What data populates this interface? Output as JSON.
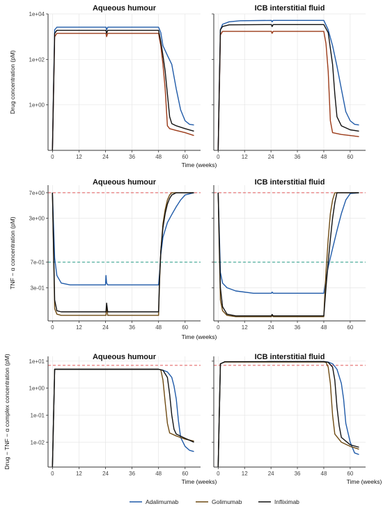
{
  "chart_data": [
    {
      "type": "line",
      "title": "Aqueous humour",
      "xlabel": "Time (weeks)",
      "ylabel": "Drug concentration (pM)",
      "yscale": "log",
      "xlim": [
        -2,
        67
      ],
      "ylim": [
        0.01,
        10000
      ],
      "xticks": [
        0,
        12,
        24,
        36,
        48,
        60
      ],
      "xtick_labels": [
        "0",
        "12",
        "24",
        "36",
        "48",
        "60"
      ],
      "yticks": [
        1,
        100,
        10000
      ],
      "ytick_labels": [
        "1e+00",
        "1e+02",
        "1e+04"
      ],
      "grid": true,
      "reference_lines": [],
      "series": [
        {
          "name": "Adalimumab",
          "x": [
            0,
            1,
            2,
            24.2,
            24.5,
            25,
            48,
            49,
            50,
            52,
            54,
            56,
            58,
            60,
            62,
            64
          ],
          "y": [
            0.01,
            2000,
            2600,
            2600,
            2000,
            2600,
            2600,
            1500,
            400,
            150,
            60,
            5,
            0.6,
            0.2,
            0.14,
            0.13
          ]
        },
        {
          "name": "Golimumab",
          "x": [
            0,
            1,
            2,
            24.2,
            24.5,
            25,
            48,
            49,
            50,
            51,
            52,
            53,
            56,
            60,
            64
          ],
          "y": [
            0.01,
            1000,
            1400,
            1400,
            1000,
            1400,
            1400,
            400,
            60,
            5,
            0.12,
            0.09,
            0.075,
            0.06,
            0.045
          ]
        },
        {
          "name": "Infliximab",
          "x": [
            0,
            1,
            2,
            24.2,
            24.5,
            25,
            48,
            49,
            50,
            51,
            52,
            53,
            54,
            56,
            60,
            64
          ],
          "y": [
            0.01,
            1400,
            1900,
            1900,
            1400,
            1900,
            1900,
            600,
            150,
            30,
            3,
            0.3,
            0.15,
            0.12,
            0.09,
            0.07
          ]
        }
      ]
    },
    {
      "type": "line",
      "title": "ICB interstitial fluid",
      "xlabel": "",
      "ylabel": "",
      "yscale": "log",
      "xlim": [
        -2,
        67
      ],
      "ylim": [
        0.01,
        10000
      ],
      "xticks": [
        0,
        12,
        24,
        36,
        48,
        60
      ],
      "xtick_labels": [
        "0",
        "12",
        "24",
        "36",
        "48",
        "60"
      ],
      "yticks": [
        1,
        100,
        10000
      ],
      "ytick_labels": [
        "",
        "",
        ""
      ],
      "grid": true,
      "reference_lines": [],
      "series": [
        {
          "name": "Adalimumab",
          "x": [
            0,
            1,
            2,
            5,
            10,
            24.2,
            24.5,
            25,
            48,
            50,
            52,
            54,
            56,
            58,
            60,
            62,
            64
          ],
          "y": [
            0.01,
            2000,
            3500,
            4500,
            5000,
            5200,
            4500,
            5200,
            5200,
            2000,
            400,
            50,
            5,
            0.5,
            0.2,
            0.14,
            0.13
          ]
        },
        {
          "name": "Golimumab",
          "x": [
            0,
            1,
            2,
            24.2,
            24.5,
            25,
            48,
            49,
            50,
            51,
            52,
            56,
            60,
            64
          ],
          "y": [
            0.01,
            1200,
            1700,
            1700,
            1400,
            1700,
            1700,
            500,
            30,
            0.2,
            0.06,
            0.05,
            0.045,
            0.04
          ]
        },
        {
          "name": "Infliximab",
          "x": [
            0,
            1,
            2,
            5,
            24.2,
            24.5,
            25,
            48,
            50,
            52,
            53,
            54,
            56,
            60,
            64
          ],
          "y": [
            0.01,
            2000,
            2800,
            3300,
            3400,
            2800,
            3400,
            3400,
            1500,
            60,
            3,
            0.3,
            0.12,
            0.08,
            0.07
          ]
        }
      ]
    },
    {
      "type": "line",
      "title": "Aqueous humour",
      "xlabel": "Time (weeks)",
      "ylabel": "TNF − α concentration (pM)",
      "yscale": "log",
      "xlim": [
        -2,
        67
      ],
      "ylim": [
        0.1,
        9
      ],
      "xticks": [
        0,
        12,
        24,
        36,
        48,
        60
      ],
      "xtick_labels": [
        "0",
        "12",
        "24",
        "36",
        "48",
        "60"
      ],
      "yticks": [
        0.3,
        0.7,
        3,
        7
      ],
      "ytick_labels": [
        "3e-01",
        "7e-01",
        "3e+00",
        "7e+00"
      ],
      "grid": true,
      "reference_lines": [
        {
          "y": 7,
          "color": "#e15759",
          "style": "dashed"
        },
        {
          "y": 0.7,
          "color": "#2e9f8a",
          "style": "dashed"
        }
      ],
      "series": [
        {
          "name": "Adalimumab",
          "x": [
            0,
            1,
            2,
            4,
            8,
            24,
            24.2,
            24.5,
            25,
            48,
            48.5,
            49,
            50,
            52,
            54,
            56,
            58,
            60,
            64
          ],
          "y": [
            7,
            0.8,
            0.45,
            0.35,
            0.33,
            0.33,
            0.45,
            0.35,
            0.33,
            0.33,
            0.5,
            0.9,
            1.6,
            2.6,
            3.4,
            4.4,
            5.5,
            6.5,
            7
          ]
        },
        {
          "name": "Golimumab",
          "x": [
            0,
            1,
            2,
            4,
            24.2,
            24.5,
            25,
            48,
            48.5,
            49,
            50,
            51,
            52,
            53,
            54,
            64
          ],
          "y": [
            7,
            0.15,
            0.125,
            0.12,
            0.12,
            0.16,
            0.12,
            0.12,
            0.4,
            1,
            2.5,
            4,
            5.5,
            6.5,
            7,
            7
          ]
        },
        {
          "name": "Infliximab",
          "x": [
            0,
            1,
            2,
            4,
            24.2,
            24.5,
            25,
            48,
            48.5,
            49,
            50,
            51,
            52,
            53,
            54,
            56,
            64
          ],
          "y": [
            7,
            0.2,
            0.14,
            0.135,
            0.135,
            0.18,
            0.135,
            0.135,
            0.45,
            1,
            2.2,
            3.5,
            4.8,
            5.8,
            6.5,
            7,
            7
          ]
        }
      ]
    },
    {
      "type": "line",
      "title": "ICB interstitial fluid",
      "xlabel": "",
      "ylabel": "",
      "yscale": "log",
      "xlim": [
        -2,
        67
      ],
      "ylim": [
        0.1,
        9
      ],
      "xticks": [
        0,
        12,
        24,
        36,
        48,
        60
      ],
      "xtick_labels": [
        "0",
        "12",
        "24",
        "36",
        "48",
        "60"
      ],
      "yticks": [
        0.3,
        0.7,
        3,
        7
      ],
      "ytick_labels": [
        "",
        "",
        "",
        ""
      ],
      "grid": true,
      "reference_lines": [
        {
          "y": 7,
          "color": "#e15759",
          "style": "dashed"
        },
        {
          "y": 0.7,
          "color": "#2e9f8a",
          "style": "dashed"
        }
      ],
      "series": [
        {
          "name": "Adalimumab",
          "x": [
            0,
            1,
            2,
            4,
            8,
            16,
            24.2,
            24.5,
            25,
            48,
            49,
            50,
            52,
            54,
            56,
            58,
            60,
            64
          ],
          "y": [
            7,
            0.5,
            0.35,
            0.3,
            0.27,
            0.25,
            0.25,
            0.26,
            0.25,
            0.25,
            0.4,
            0.6,
            1.1,
            2,
            3.5,
            5.5,
            6.8,
            7
          ]
        },
        {
          "name": "Golimumab",
          "x": [
            0,
            1,
            2,
            4,
            8,
            24.2,
            24.5,
            25,
            48,
            49,
            50,
            51,
            52,
            53,
            64
          ],
          "y": [
            7,
            0.2,
            0.14,
            0.12,
            0.115,
            0.115,
            0.12,
            0.115,
            0.115,
            0.5,
            1.5,
            3.5,
            5.5,
            7,
            7
          ]
        },
        {
          "name": "Infliximab",
          "x": [
            0,
            1,
            2,
            4,
            8,
            24.2,
            24.5,
            25,
            48,
            49,
            50,
            51,
            52,
            53,
            54,
            64
          ],
          "y": [
            7,
            0.3,
            0.16,
            0.125,
            0.118,
            0.118,
            0.124,
            0.118,
            0.118,
            0.3,
            0.7,
            1.5,
            3,
            5,
            7,
            7
          ]
        }
      ]
    },
    {
      "type": "line",
      "title": "Aqueous humour",
      "xlabel": "Time (weeks)",
      "ylabel": "Drug − TNF − α complex concentration (pM)",
      "yscale": "log",
      "xlim": [
        -2,
        67
      ],
      "ylim": [
        0.0012,
        15
      ],
      "xticks": [
        0,
        12,
        24,
        36,
        48,
        60
      ],
      "xtick_labels": [
        "0",
        "12",
        "24",
        "36",
        "48",
        "60"
      ],
      "yticks": [
        0.01,
        0.1,
        1,
        10
      ],
      "ytick_labels": [
        "1e-02",
        "1e-01",
        "1e+00",
        "1e+01"
      ],
      "grid": true,
      "reference_lines": [
        {
          "y": 7,
          "color": "#e15759",
          "style": "dashed"
        }
      ],
      "series": [
        {
          "name": "Adalimumab",
          "x": [
            0,
            1,
            24,
            48,
            50,
            52,
            54,
            55,
            56,
            57,
            58,
            60,
            62,
            64
          ],
          "y": [
            0.0012,
            5,
            5,
            5,
            4.6,
            4,
            2.5,
            1.2,
            0.4,
            0.06,
            0.015,
            0.007,
            0.005,
            0.0045
          ]
        },
        {
          "name": "Golimumab",
          "x": [
            0,
            1,
            24,
            48,
            49,
            50,
            51,
            52,
            53,
            56,
            60,
            64
          ],
          "y": [
            0.0012,
            5,
            5,
            5,
            4.8,
            2,
            0.3,
            0.05,
            0.022,
            0.017,
            0.013,
            0.011
          ]
        },
        {
          "name": "Infliximab",
          "x": [
            0,
            1,
            24,
            48,
            50,
            52,
            53,
            54,
            55,
            56,
            60,
            64
          ],
          "y": [
            0.0012,
            5,
            5,
            5,
            4.6,
            2.5,
            0.6,
            0.1,
            0.03,
            0.02,
            0.014,
            0.01
          ]
        }
      ]
    },
    {
      "type": "line",
      "title": "ICB interstitial fluid",
      "xlabel": "Time (weeks)",
      "ylabel": "",
      "yscale": "log",
      "xlim": [
        -2,
        67
      ],
      "ylim": [
        0.0012,
        15
      ],
      "xticks": [
        0,
        12,
        24,
        36,
        48,
        60
      ],
      "xtick_labels": [
        "0",
        "12",
        "24",
        "36",
        "48",
        "60"
      ],
      "yticks": [
        0.01,
        0.1,
        1,
        10
      ],
      "ytick_labels": [
        "",
        "",
        "",
        ""
      ],
      "grid": true,
      "reference_lines": [
        {
          "y": 7,
          "color": "#e15759",
          "style": "dashed"
        }
      ],
      "series": [
        {
          "name": "Adalimumab",
          "x": [
            0,
            1,
            3,
            24,
            48,
            50,
            52,
            54,
            56,
            57,
            58,
            60,
            62,
            64
          ],
          "y": [
            0.0012,
            8,
            9.5,
            9.6,
            9.6,
            9.2,
            8,
            5,
            1.5,
            0.4,
            0.05,
            0.01,
            0.004,
            0.0035
          ]
        },
        {
          "name": "Golimumab",
          "x": [
            0,
            1,
            3,
            24,
            48,
            49,
            50,
            51,
            52,
            53,
            56,
            60,
            64
          ],
          "y": [
            0.0012,
            8,
            9.3,
            9.3,
            9.3,
            9,
            6,
            1.5,
            0.1,
            0.02,
            0.01,
            0.007,
            0.0055
          ]
        },
        {
          "name": "Infliximab",
          "x": [
            0,
            1,
            3,
            24,
            48,
            50,
            52,
            53,
            54,
            55,
            56,
            60,
            64
          ],
          "y": [
            0.0012,
            8,
            9.5,
            9.6,
            9.6,
            9,
            6,
            2,
            0.2,
            0.04,
            0.015,
            0.008,
            0.0065
          ]
        }
      ]
    }
  ],
  "legend": {
    "placement": "bottom",
    "entries": [
      {
        "name": "Adalimumab",
        "color": "#1f5aa8"
      },
      {
        "name": "Golimumab",
        "color": "#6e4a12"
      },
      {
        "name": "Infliximab",
        "color": "#111111"
      }
    ]
  },
  "colors": {
    "Adalimumab": "#1f5aa8",
    "Golimumab": "#6e4a12",
    "Infliximab": "#111111",
    "Golimumab_row1": "#9b3a18",
    "grid": "#e6e6e6",
    "axis": "#333333"
  }
}
